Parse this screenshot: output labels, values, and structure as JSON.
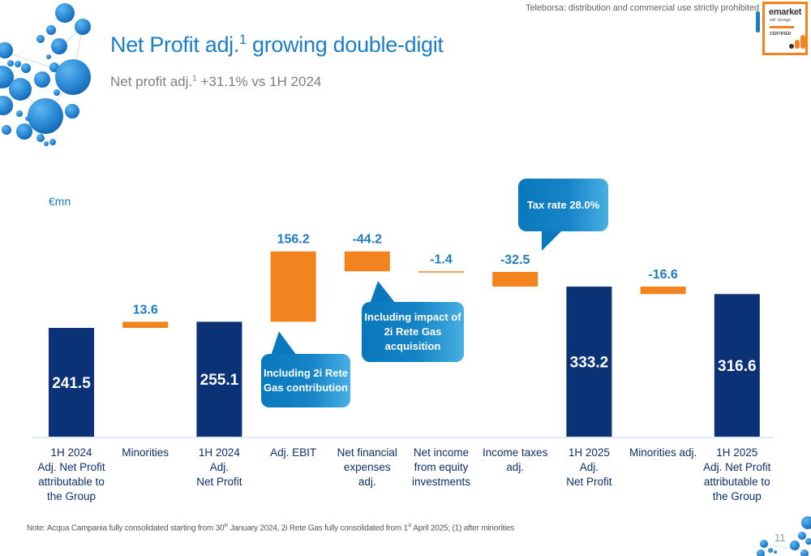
{
  "header": {
    "watermark": "Teleborsa: distribution and commercial use strictly prohibited",
    "badge": {
      "brand": "emarket",
      "line2": "sdir storage",
      "line3": "CERTIFIED"
    },
    "title_pre": "Net Profit adj.",
    "title_sup": "1",
    "title_post": " growing double-digit",
    "subtitle_pre": "Net profit adj.",
    "subtitle_sup": "1",
    "subtitle_post": " +31.1% vs 1H 2024"
  },
  "colors": {
    "total_bar": "#0b3277",
    "delta_bar": "#f2831f",
    "value_label": "#1e7bc4",
    "axis_line": "#d6e4f5",
    "title": "#1a7fc7"
  },
  "chart_data": {
    "type": "bar",
    "subtype": "waterfall",
    "unit_label": "€mn",
    "categories": [
      "1H 2024\nAdj. Net Profit\nattributable to\nthe Group",
      "Minorities",
      "1H 2024\nAdj.\nNet Profit",
      "Adj. EBIT",
      "Net financial\nexpenses\nadj.",
      "Net income\nfrom equity\ninvestments",
      "Income taxes\nadj.",
      "1H 2025\nAdj.\nNet Profit",
      "Minorities adj.",
      "1H 2025\nAdj. Net Profit\nattributable to\nthe Group"
    ],
    "values": [
      241.5,
      13.6,
      255.1,
      156.2,
      -44.2,
      -1.4,
      -32.5,
      333.2,
      -16.6,
      316.6
    ],
    "kinds": [
      "total",
      "delta",
      "total",
      "delta",
      "delta",
      "delta",
      "delta",
      "total",
      "delta",
      "total"
    ],
    "labels": [
      "241.5",
      "13.6",
      "255.1",
      "156.2",
      "-44.2",
      "-1.4",
      "-32.5",
      "333.2",
      "-16.6",
      "316.6"
    ],
    "ylim": [
      0,
      420
    ],
    "grid": false,
    "legend": "none",
    "annotations": [
      {
        "category_index": 3,
        "text": "Including 2i Rete\nGas contribution"
      },
      {
        "category_index": 4,
        "text": "Including impact of\n2i Rete Gas\nacquisition"
      },
      {
        "category_index": 6,
        "text": "Tax rate 28.0%"
      }
    ]
  },
  "footer": {
    "note_parts": [
      "Note: Acqua Campania fully consolidated starting from 30",
      "th",
      " January 2024, 2i Rete Gas fully consolidated from 1",
      "st",
      " April 2025; (1) after minorities"
    ],
    "page_number": "11"
  }
}
